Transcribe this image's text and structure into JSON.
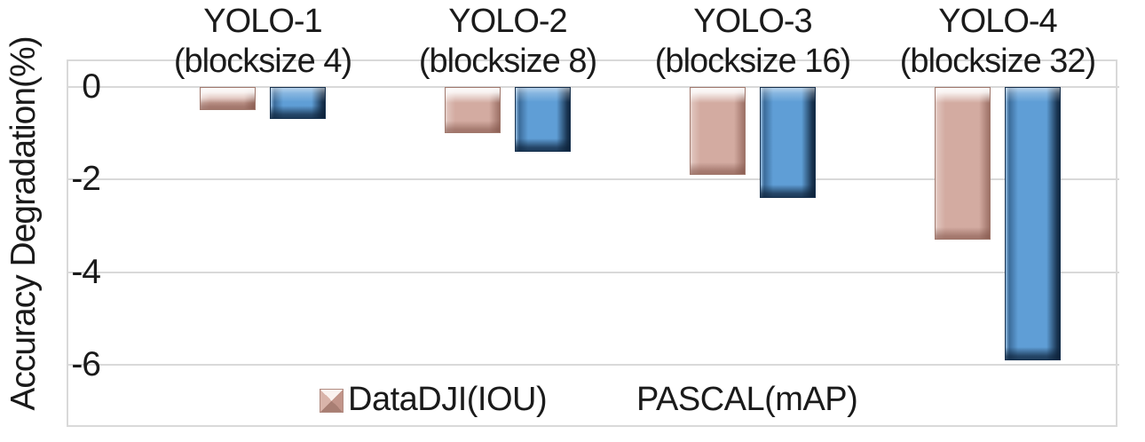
{
  "figure": {
    "background": "#ffffff",
    "text_color": "#1a1a1a"
  },
  "chart_data": {
    "type": "bar",
    "orientation": "vertical",
    "title": "",
    "xlabel": "",
    "ylabel": "Accuracy Degradation(%)",
    "categories": [
      {
        "title": "YOLO-1",
        "subtitle": "(blocksize 4)"
      },
      {
        "title": "YOLO-2",
        "subtitle": "(blocksize 8)"
      },
      {
        "title": "YOLO-3",
        "subtitle": "(blocksize 16)"
      },
      {
        "title": "YOLO-4",
        "subtitle": "(blocksize 32)"
      }
    ],
    "series": [
      {
        "name": "DataDJI(IOU)",
        "color": "#d3aba1",
        "border_color": "#a0786d",
        "values": [
          -0.5,
          -1.0,
          -1.9,
          -3.3
        ]
      },
      {
        "name": "PASCAL(mAP)",
        "color": "#5f9ed6",
        "border_color": "#16304d",
        "values": [
          -0.7,
          -1.4,
          -2.4,
          -5.9
        ]
      }
    ],
    "y_ticks": [
      0,
      -2,
      -4,
      -6
    ],
    "ylim": [
      -7.4,
      0.6
    ],
    "grid": true,
    "gridline_color": "#d9d9d9",
    "bar_style": "3d-bevel",
    "category_labels_position": "top",
    "legend_position": "bottom-inside"
  },
  "legend": {
    "items": [
      {
        "label": "DataDJI(IOU)",
        "marker_visible": true,
        "marker_color": "#d3aba1"
      },
      {
        "label": "PASCAL(mAP)",
        "marker_visible": false,
        "marker_color": "#5f9ed6"
      }
    ]
  }
}
